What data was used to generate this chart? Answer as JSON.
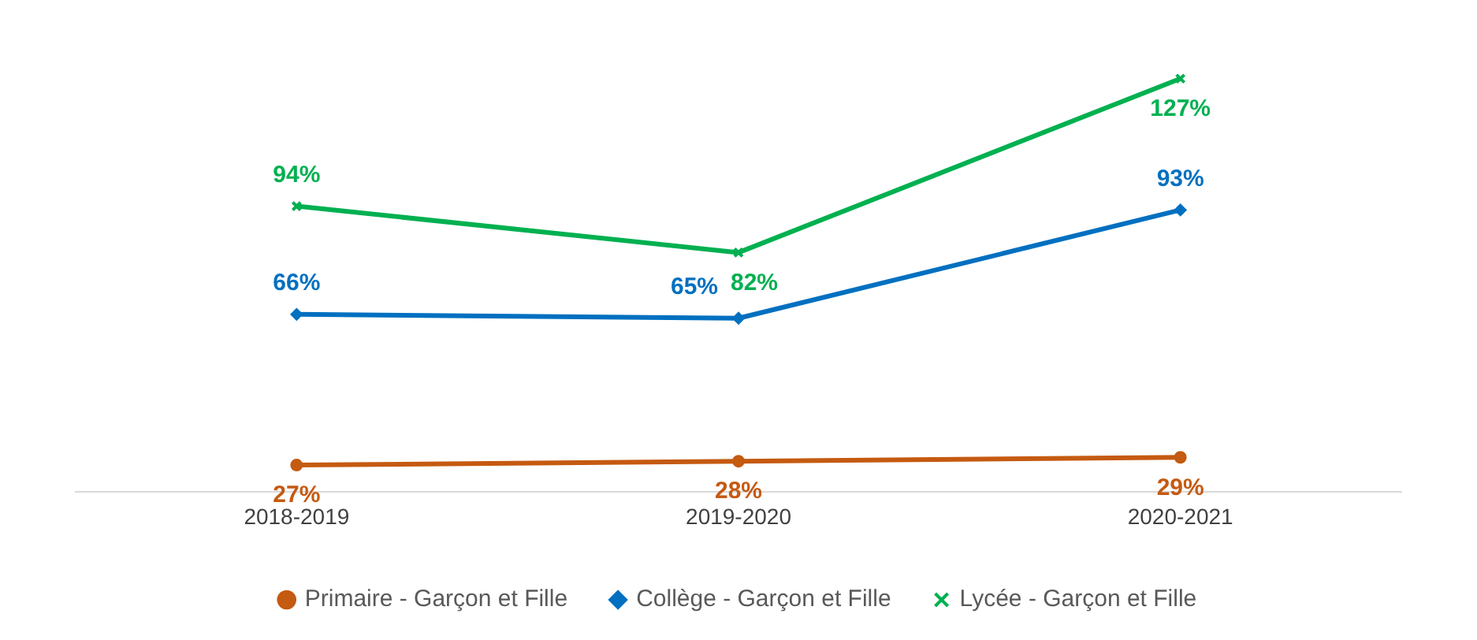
{
  "chart_data": {
    "type": "line",
    "categories": [
      "2018-2019",
      "2019-2020",
      "2020-2021"
    ],
    "series": [
      {
        "name": "Primaire - Garçon et Fille",
        "color": "#c55a11",
        "marker": "circle",
        "values": [
          27,
          28,
          29
        ],
        "value_labels": [
          "27%",
          "28%",
          "29%"
        ]
      },
      {
        "name": "Collège - Garçon et Fille",
        "color": "#0070c0",
        "marker": "diamond",
        "values": [
          66,
          65,
          93
        ],
        "value_labels": [
          "66%",
          "65%",
          "93%"
        ]
      },
      {
        "name": "Lycée - Garçon et Fille",
        "color": "#00b050",
        "marker": "cross",
        "values": [
          94,
          82,
          127
        ],
        "value_labels": [
          "94%",
          "82%",
          "127%"
        ]
      }
    ],
    "tick_labels": "x",
    "grid": false,
    "legend": "bottom",
    "line_style": "solid"
  }
}
